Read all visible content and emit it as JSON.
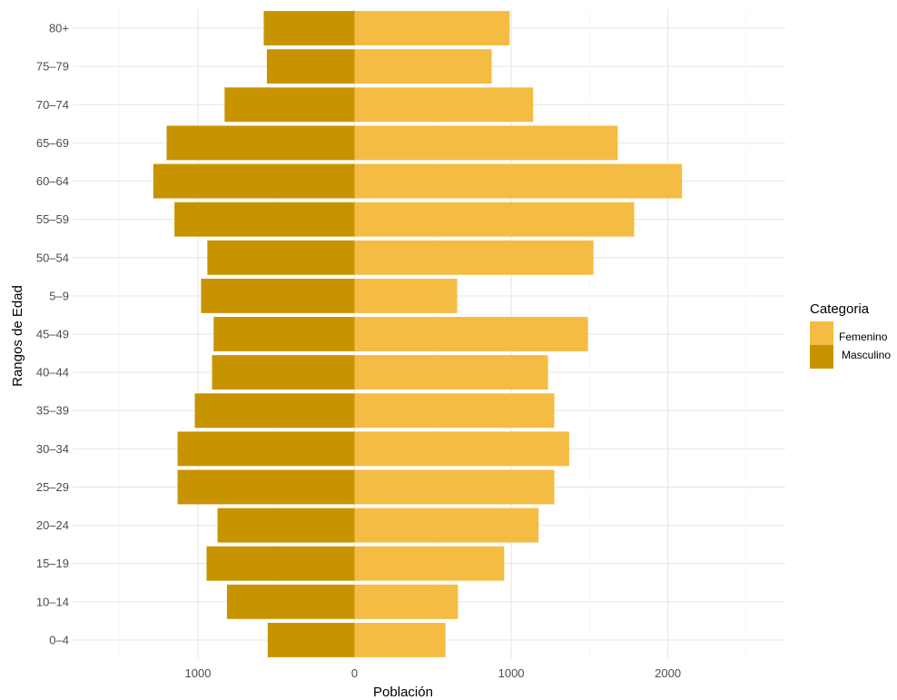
{
  "chart_data": {
    "type": "bar",
    "orientation": "horizontal",
    "xlabel": "Población",
    "ylabel": "Rangos de Edad",
    "xlim": [
      -1800,
      2750
    ],
    "x_ticks": [
      {
        "value": -1000,
        "label": "1000"
      },
      {
        "value": 0,
        "label": "0"
      },
      {
        "value": 1000,
        "label": "1000"
      },
      {
        "value": 2000,
        "label": "2000"
      }
    ],
    "categories": [
      "0–4",
      "10–14",
      "15–19",
      "20–24",
      "25–29",
      "30–34",
      "35–39",
      "40–44",
      "45–49",
      "5–9",
      "50–54",
      "55–59",
      "60–64",
      "65–69",
      "70–74",
      "75–79",
      "80+"
    ],
    "series": [
      {
        "name": "Femenino",
        "color": "#F4BC42",
        "values": [
          580,
          660,
          955,
          1175,
          1275,
          1370,
          1275,
          1235,
          1490,
          655,
          1525,
          1785,
          2090,
          1680,
          1140,
          875,
          990
        ]
      },
      {
        "name": "Masculino",
        "color": "#C79400",
        "values": [
          555,
          815,
          945,
          875,
          1130,
          1130,
          1020,
          910,
          900,
          980,
          940,
          1150,
          1285,
          1200,
          830,
          560,
          580
        ]
      }
    ],
    "grid": true,
    "legend": {
      "title": "Categoria",
      "position": "right"
    }
  }
}
